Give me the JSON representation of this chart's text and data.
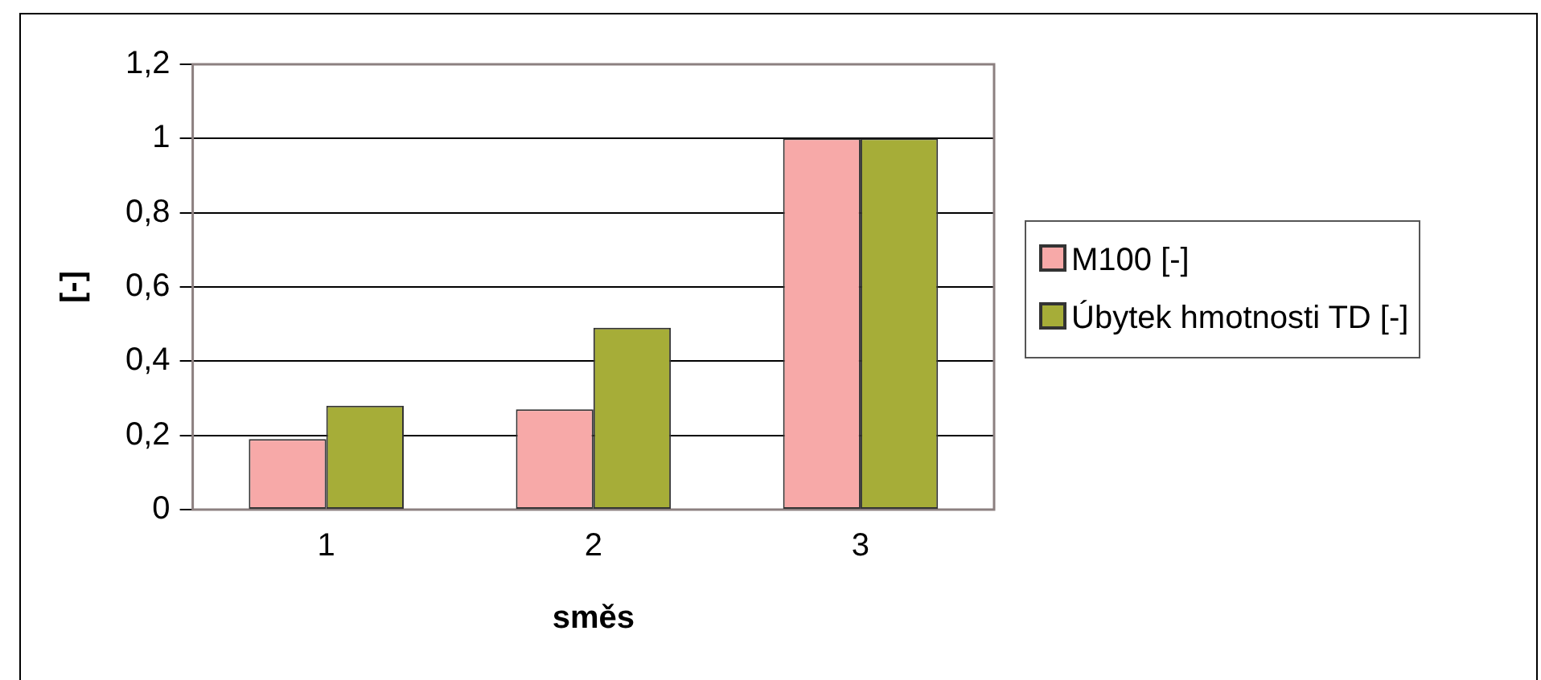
{
  "chart_data": {
    "type": "bar",
    "xlabel": "směs",
    "ylabel": "[-]",
    "categories": [
      "1",
      "2",
      "3"
    ],
    "series": [
      {
        "name": "M100 [-]",
        "color": "#f7a9a8",
        "values": [
          0.19,
          0.27,
          1
        ]
      },
      {
        "name": "Úbytek hmotnosti TD [-]",
        "color": "#a6ad38",
        "values": [
          0.28,
          0.49,
          1
        ]
      }
    ],
    "ylim": [
      0,
      1.2
    ],
    "yticks": [
      0,
      {
        "value": 0.2,
        "label": "0,2"
      },
      {
        "value": 0.4,
        "label": "0,4"
      },
      {
        "value": 0.6,
        "label": "0,6"
      },
      {
        "value": 0.8,
        "label": "0,8"
      },
      1,
      {
        "value": 1.2,
        "label": "1,2"
      }
    ],
    "grid": "y",
    "legend": "right"
  }
}
